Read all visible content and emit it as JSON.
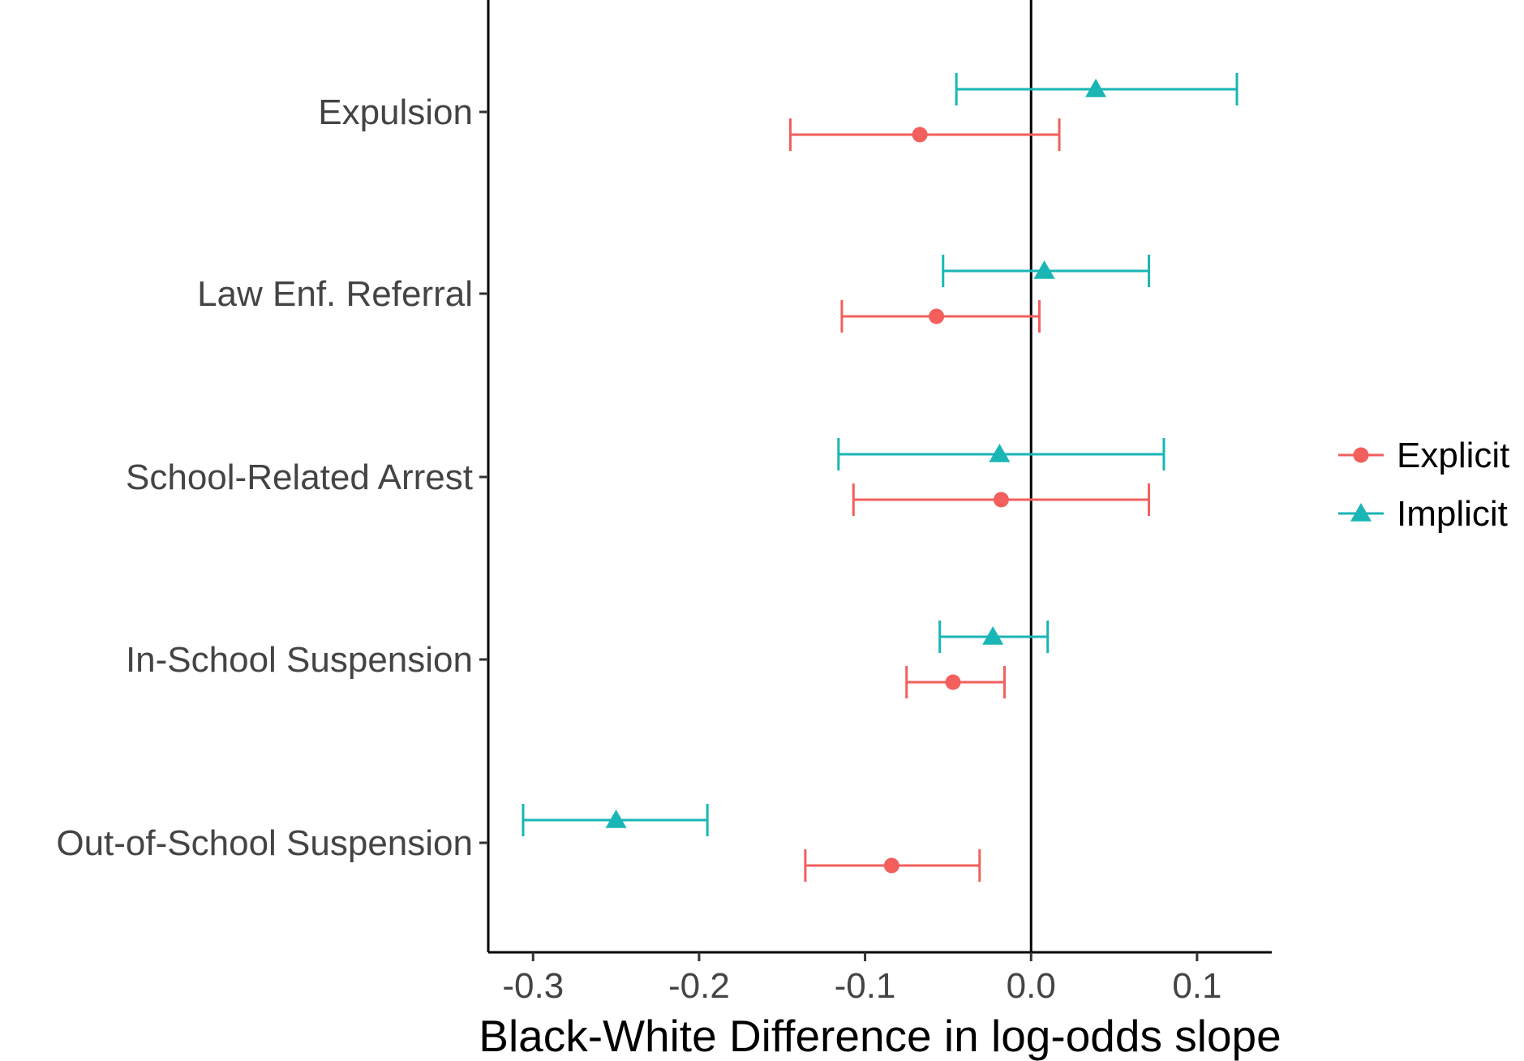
{
  "chart_data": {
    "type": "scatter",
    "subtype": "coefficient-plot-with-error-bars",
    "orientation": "horizontal",
    "categories": [
      "Expulsion",
      "Law Enf. Referral",
      "School-Related Arrest",
      "In-School Suspension",
      "Out-of-School Suspension"
    ],
    "xlabel": "Black-White Difference in log-odds slope",
    "ylabel": "",
    "xlim": [
      -0.327,
      0.145
    ],
    "xticks": [
      -0.3,
      -0.2,
      -0.1,
      0.0,
      0.1
    ],
    "xtick_labels": [
      "-0.3",
      "-0.2",
      "-0.1",
      "0.0",
      "0.1"
    ],
    "reference_line_x": 0,
    "grid": false,
    "legend_position": "right",
    "series": [
      {
        "name": "Explicit",
        "color": "#F25F5C",
        "marker": "circle",
        "points": [
          {
            "category": "Expulsion",
            "estimate": -0.067,
            "lower": -0.145,
            "upper": 0.017
          },
          {
            "category": "Law Enf. Referral",
            "estimate": -0.057,
            "lower": -0.114,
            "upper": 0.005
          },
          {
            "category": "School-Related Arrest",
            "estimate": -0.018,
            "lower": -0.107,
            "upper": 0.071
          },
          {
            "category": "In-School Suspension",
            "estimate": -0.047,
            "lower": -0.075,
            "upper": -0.016
          },
          {
            "category": "Out-of-School Suspension",
            "estimate": -0.084,
            "lower": -0.136,
            "upper": -0.031
          }
        ]
      },
      {
        "name": "Implicit",
        "color": "#1AB5B5",
        "marker": "triangle",
        "points": [
          {
            "category": "Expulsion",
            "estimate": 0.039,
            "lower": -0.045,
            "upper": 0.124
          },
          {
            "category": "Law Enf. Referral",
            "estimate": 0.008,
            "lower": -0.053,
            "upper": 0.071
          },
          {
            "category": "School-Related Arrest",
            "estimate": -0.019,
            "lower": -0.116,
            "upper": 0.08
          },
          {
            "category": "In-School Suspension",
            "estimate": -0.023,
            "lower": -0.055,
            "upper": 0.01
          },
          {
            "category": "Out-of-School Suspension",
            "estimate": -0.25,
            "lower": -0.306,
            "upper": -0.195
          }
        ]
      }
    ]
  }
}
